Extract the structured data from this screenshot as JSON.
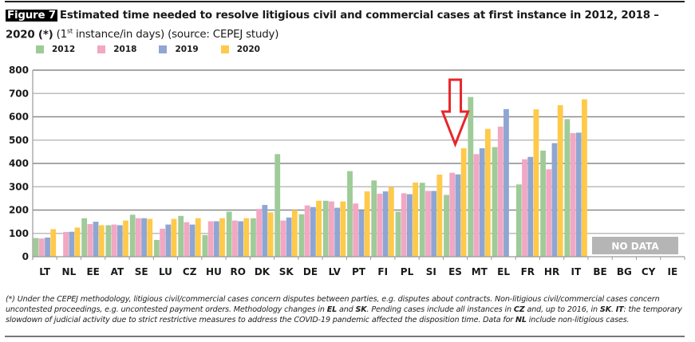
{
  "title": {
    "figure_label": "Figure 7",
    "main": "Estimated time needed to resolve litigious civil and commercial cases at first instance in 2012, 2018 – 2020 (*)",
    "sub_pre": " (1",
    "sub_sup": "st",
    "sub_post": " instance/in days) (source: CEPEJ study)"
  },
  "chart_data": {
    "type": "bar",
    "title": "Estimated time needed to resolve litigious civil and commercial cases at first instance in 2012, 2018 – 2020 (*)",
    "xlabel": "",
    "ylabel": "",
    "ylim": [
      0,
      800
    ],
    "yticks": [
      0,
      100,
      200,
      300,
      400,
      500,
      600,
      700,
      800
    ],
    "grid": true,
    "legend_position": "top-left",
    "categories": [
      "LT",
      "NL",
      "EE",
      "AT",
      "SE",
      "LU",
      "CZ",
      "HU",
      "RO",
      "DK",
      "SK",
      "DE",
      "LV",
      "PT",
      "FI",
      "PL",
      "SI",
      "ES",
      "MT",
      "EL",
      "FR",
      "HR",
      "IT",
      "BE",
      "BG",
      "CY",
      "IE"
    ],
    "series": [
      {
        "name": "2012",
        "color": "#9fcb98",
        "values": [
          80,
          null,
          165,
          135,
          180,
          72,
          175,
          93,
          193,
          165,
          440,
          182,
          240,
          367,
          327,
          193,
          317,
          265,
          685,
          470,
          310,
          455,
          590,
          null,
          null,
          null,
          null
        ]
      },
      {
        "name": "2018",
        "color": "#f2a7c3",
        "values": [
          78,
          106,
          140,
          138,
          165,
          120,
          148,
          152,
          155,
          205,
          155,
          220,
          237,
          228,
          270,
          272,
          282,
          360,
          440,
          558,
          418,
          375,
          530,
          null,
          null,
          null,
          null
        ]
      },
      {
        "name": "2019",
        "color": "#8fa6d2",
        "values": [
          82,
          107,
          150,
          135,
          165,
          138,
          138,
          152,
          152,
          222,
          168,
          213,
          210,
          198,
          280,
          268,
          282,
          353,
          465,
          633,
          428,
          487,
          532,
          null,
          null,
          null,
          null
        ]
      },
      {
        "name": "2020",
        "color": "#ffc94a",
        "values": [
          118,
          125,
          135,
          155,
          162,
          162,
          165,
          165,
          165,
          190,
          200,
          240,
          237,
          280,
          298,
          318,
          352,
          465,
          548,
          null,
          632,
          650,
          675,
          null,
          null,
          null,
          null
        ]
      }
    ],
    "annotations": {
      "no_data_label": "NO DATA",
      "no_data_categories": [
        "BE",
        "BG",
        "CY",
        "IE"
      ],
      "highlight_category": "ES",
      "highlight_color": "#e8262a"
    }
  },
  "footnote": {
    "p1": "(*) Under the CEPEJ methodology, litigious civil/commercial cases concern disputes between parties, e.g. disputes about contracts. Non-litigious civil/commercial cases concern uncontested proceedings, e.g. uncontested payment orders. Methodology changes in ",
    "b1": "EL",
    "p2": " and ",
    "b2": "SK",
    "p3": ". Pending cases include all instances in ",
    "b3": "CZ",
    "p4": " and, up to 2016, in ",
    "b4": "SK",
    "p5": ". ",
    "b5": "IT",
    "p6": ": the temporary slowdown of judicial activity due to strict restrictive measures to address the COVID-19 pandemic affected the disposition time. Data for ",
    "b6": "NL",
    "p7": " include non-litigious cases."
  }
}
